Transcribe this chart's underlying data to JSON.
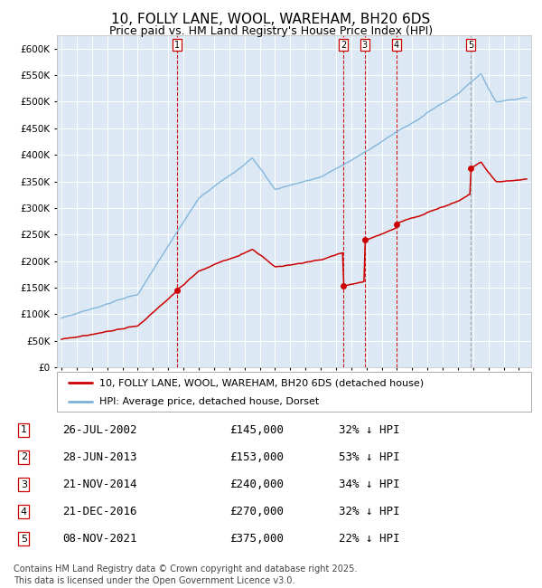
{
  "title": "10, FOLLY LANE, WOOL, WAREHAM, BH20 6DS",
  "subtitle": "Price paid vs. HM Land Registry's House Price Index (HPI)",
  "title_fontsize": 11,
  "subtitle_fontsize": 9,
  "bg_color": "#dce9f5",
  "grid_color": "#ffffff",
  "hpi_color": "#7ab0d8",
  "price_color": "#cc0000",
  "marker_color": "#cc0000",
  "vline_color": "#cc0000",
  "vline5_color": "#999999",
  "ylim": [
    0,
    620000
  ],
  "yticks": [
    0,
    50000,
    100000,
    150000,
    200000,
    250000,
    300000,
    350000,
    400000,
    450000,
    500000,
    550000,
    600000
  ],
  "legend_entries": [
    "10, FOLLY LANE, WOOL, WAREHAM, BH20 6DS (detached house)",
    "HPI: Average price, detached house, Dorset"
  ],
  "transactions": [
    {
      "num": 1,
      "date": "26-JUL-2002",
      "price": 145000,
      "pct": "32%",
      "dir": "↓",
      "label": "HPI"
    },
    {
      "num": 2,
      "date": "28-JUN-2013",
      "price": 153000,
      "pct": "53%",
      "dir": "↓",
      "label": "HPI"
    },
    {
      "num": 3,
      "date": "21-NOV-2014",
      "price": 240000,
      "pct": "34%",
      "dir": "↓",
      "label": "HPI"
    },
    {
      "num": 4,
      "date": "21-DEC-2016",
      "price": 270000,
      "pct": "32%",
      "dir": "↓",
      "label": "HPI"
    },
    {
      "num": 5,
      "date": "08-NOV-2021",
      "price": 375000,
      "pct": "22%",
      "dir": "↓",
      "label": "HPI"
    }
  ],
  "transaction_dates_x": [
    2002.57,
    2013.49,
    2014.89,
    2016.97,
    2021.85
  ],
  "transaction_prices": [
    145000,
    153000,
    240000,
    270000,
    375000
  ],
  "footer": "Contains HM Land Registry data © Crown copyright and database right 2025.\nThis data is licensed under the Open Government Licence v3.0.",
  "footer_fontsize": 7,
  "table_fontsize": 9
}
